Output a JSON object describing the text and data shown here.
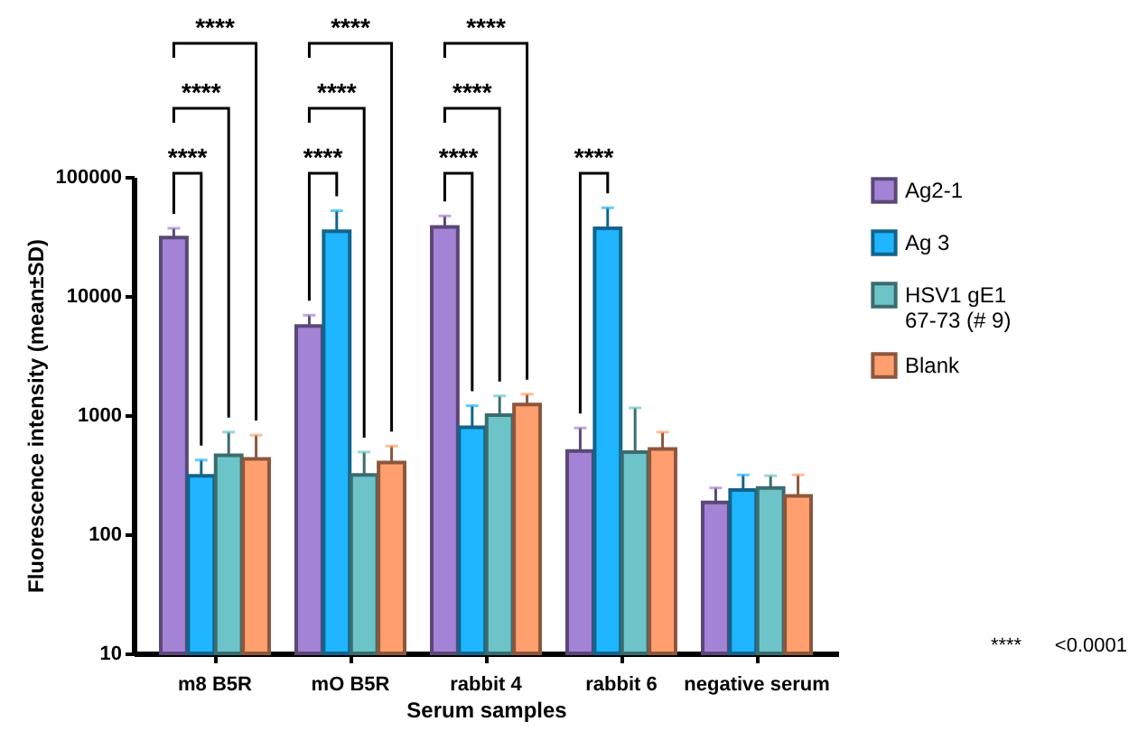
{
  "chart_data": {
    "type": "bar",
    "xlabel": "Serum samples",
    "ylabel": "Fluorescence intensity (mean±SD)",
    "categories": [
      "m8 B5R",
      "mO B5R",
      "rabbit 4",
      "rabbit 6",
      "negative serum"
    ],
    "series": [
      {
        "name": "Ag2-1",
        "color": "#a383d6",
        "values": [
          31000,
          5600,
          38000,
          500,
          185
        ],
        "errors": [
          [
            31000,
            37000
          ],
          [
            5600,
            6900
          ],
          [
            38000,
            47000
          ],
          [
            500,
            780
          ],
          [
            185,
            245
          ]
        ]
      },
      {
        "name": "Ag 3",
        "color": "#1fb5ff",
        "values": [
          310,
          35000,
          790,
          37000,
          235
        ],
        "errors": [
          [
            310,
            420
          ],
          [
            35000,
            52000
          ],
          [
            790,
            1200
          ],
          [
            37000,
            55000
          ],
          [
            235,
            315
          ]
        ]
      },
      {
        "name": "HSV1 gE1 67-73 (# 9)",
        "color": "#6cc4c8",
        "values": [
          460,
          315,
          1000,
          490,
          245
        ],
        "errors": [
          [
            460,
            720
          ],
          [
            315,
            490
          ],
          [
            1000,
            1450
          ],
          [
            490,
            1150
          ],
          [
            245,
            310
          ]
        ]
      },
      {
        "name": "Blank",
        "color": "#ff9f6e",
        "values": [
          430,
          400,
          1230,
          520,
          210
        ],
        "errors": [
          [
            430,
            680
          ],
          [
            400,
            550
          ],
          [
            1230,
            1500
          ],
          [
            520,
            720
          ],
          [
            210,
            315
          ]
        ]
      }
    ],
    "log": "y",
    "ylim": [
      10,
      100000
    ],
    "yticks": [
      10,
      100,
      1000,
      10000,
      100000
    ],
    "grid": false,
    "legend": "top right",
    "annotations": [
      "****",
      "****",
      "****",
      "****",
      "****",
      "****",
      "****",
      "****",
      "****",
      "****",
      "**** <0.0001"
    ]
  }
}
